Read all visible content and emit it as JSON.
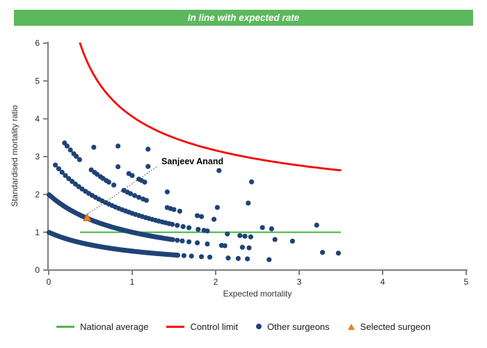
{
  "banner": {
    "text": "In line with expected rate",
    "bg_color": "#5cb85c",
    "text_color": "#ffffff"
  },
  "chart_data": {
    "type": "scatter",
    "xlabel": "Expected mortality",
    "ylabel": "Standardised mortality ratio",
    "xlim": [
      0,
      5
    ],
    "ylim": [
      0,
      6
    ],
    "x_ticks": [
      0,
      1,
      2,
      3,
      4,
      5
    ],
    "y_ticks": [
      0,
      1,
      2,
      3,
      4,
      5,
      6
    ],
    "grid": false,
    "axis_color": "#7f7f7f",
    "national_average": {
      "y": 1,
      "x_start": 0.375,
      "x_end": 3.5,
      "color": "#4cb648"
    },
    "control_limit": {
      "a": 1,
      "b": 3.06,
      "formula": "SMR = 1 + 3.06/sqrt(E)",
      "x_start": 0.375,
      "x_end": 3.5,
      "y_start": 6.0,
      "y_end": 2.64,
      "color": "#f80000"
    },
    "other_surgeons": {
      "color": "#1f4377",
      "point_radius": 3.6,
      "band_formula": "SMR = deaths/(1+E)",
      "bands": [
        {
          "deaths": 1,
          "dense_x": [
            0.005,
            1.55,
            0.02
          ],
          "sparse_x": [
            1.62,
            1.71,
            1.83,
            1.93,
            2.15,
            2.27,
            2.38,
            2.64
          ]
        },
        {
          "deaths": 2,
          "dense_x": [
            0.005,
            1.5,
            0.02
          ],
          "sparse_x": [
            1.54,
            1.6,
            1.68,
            1.78,
            1.9,
            2.07,
            2.11,
            2.32,
            2.4,
            3.28,
            3.47
          ]
        },
        {
          "deaths": 3,
          "dense_x": [
            0.08,
            1.5,
            0.04
          ],
          "sparse_x": [
            1.54,
            1.61,
            1.68,
            1.79,
            1.86,
            1.9,
            2.14,
            2.29,
            2.35,
            2.42,
            2.71,
            2.92
          ]
        },
        {
          "deaths": 4,
          "dense_x": null,
          "sparse_x": [
            0.19,
            0.22,
            0.26,
            0.3,
            0.33,
            0.37,
            0.51,
            0.55,
            0.58,
            0.62,
            0.65,
            0.69,
            0.72,
            0.78,
            0.9,
            0.94,
            0.98,
            1.03,
            1.08,
            1.13,
            1.17,
            1.42,
            1.46,
            1.5,
            1.57,
            1.78,
            1.83,
            1.98,
            2.56,
            2.67
          ]
        },
        {
          "deaths": 5,
          "dense_x": null,
          "sparse_x": [
            0.54,
            0.83,
            0.96,
            1.0,
            1.08,
            1.11,
            1.15,
            1.42,
            2.02,
            3.21
          ]
        },
        {
          "deaths": 6,
          "dense_x": null,
          "sparse_x": [
            0.83,
            1.19,
            2.39
          ]
        },
        {
          "deaths": 7,
          "dense_x": null,
          "sparse_x": [
            1.19
          ]
        },
        {
          "deaths": 8,
          "dense_x": null,
          "sparse_x": [
            2.04,
            2.43
          ]
        }
      ]
    },
    "selected_surgeon": {
      "label": "Sanjeev Anand",
      "x": 0.46,
      "y": 1.37,
      "color": "#ee7f1d",
      "edge_color": "#c2660d"
    }
  },
  "legend": {
    "items": [
      {
        "label": "National average",
        "swatch": "line",
        "color": "#4cb648"
      },
      {
        "label": "Control limit",
        "swatch": "line",
        "color": "#f80000"
      },
      {
        "label": "Other surgeons",
        "swatch": "dot",
        "color": "#1f4377"
      },
      {
        "label": "Selected surgeon",
        "swatch": "triangle",
        "color": "#ee7f1d"
      }
    ]
  }
}
